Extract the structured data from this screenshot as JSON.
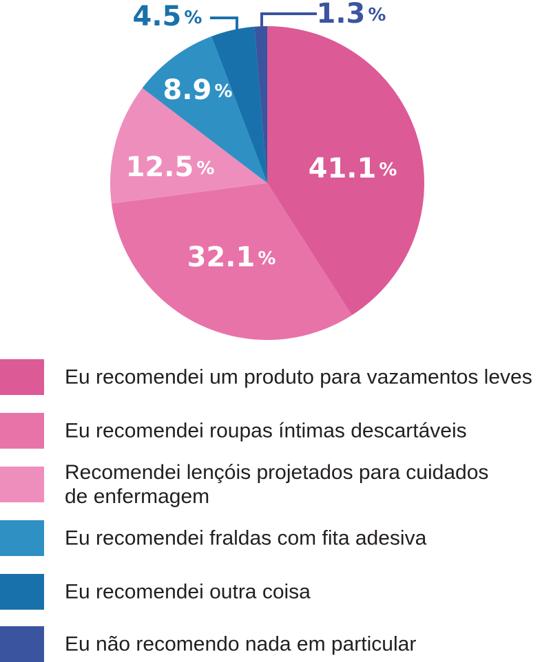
{
  "chart_data": {
    "type": "pie",
    "slices": [
      {
        "label": "Eu recomendei um produto para vazamentos leves",
        "value": 41.1,
        "display": "41.1",
        "color": "#dc5a96"
      },
      {
        "label": "Eu recomendei roupas íntimas descartáveis",
        "value": 32.1,
        "display": "32.1",
        "color": "#e773a9"
      },
      {
        "label": "Recomendei lençóis projetados para cuidados de enfermagem",
        "label_lines": [
          "Recomendei lençóis projetados para cuidados",
          "de enfermagem"
        ],
        "value": 12.5,
        "display": "12.5",
        "color": "#ee8ebc"
      },
      {
        "label": "Eu recomendei fraldas com fita adesiva",
        "value": 8.9,
        "display": "8.9",
        "color": "#2f90c4"
      },
      {
        "label": "Eu recomendei outra coisa",
        "value": 4.5,
        "display": "4.5",
        "color": "#1971ab"
      },
      {
        "label": "Eu não recomendo nada em particular",
        "value": 1.3,
        "display": "1.3",
        "color": "#3b54a0"
      }
    ],
    "percent_symbol": "%",
    "legend_placement": "bottom",
    "start": "12 o'clock, clockwise"
  }
}
